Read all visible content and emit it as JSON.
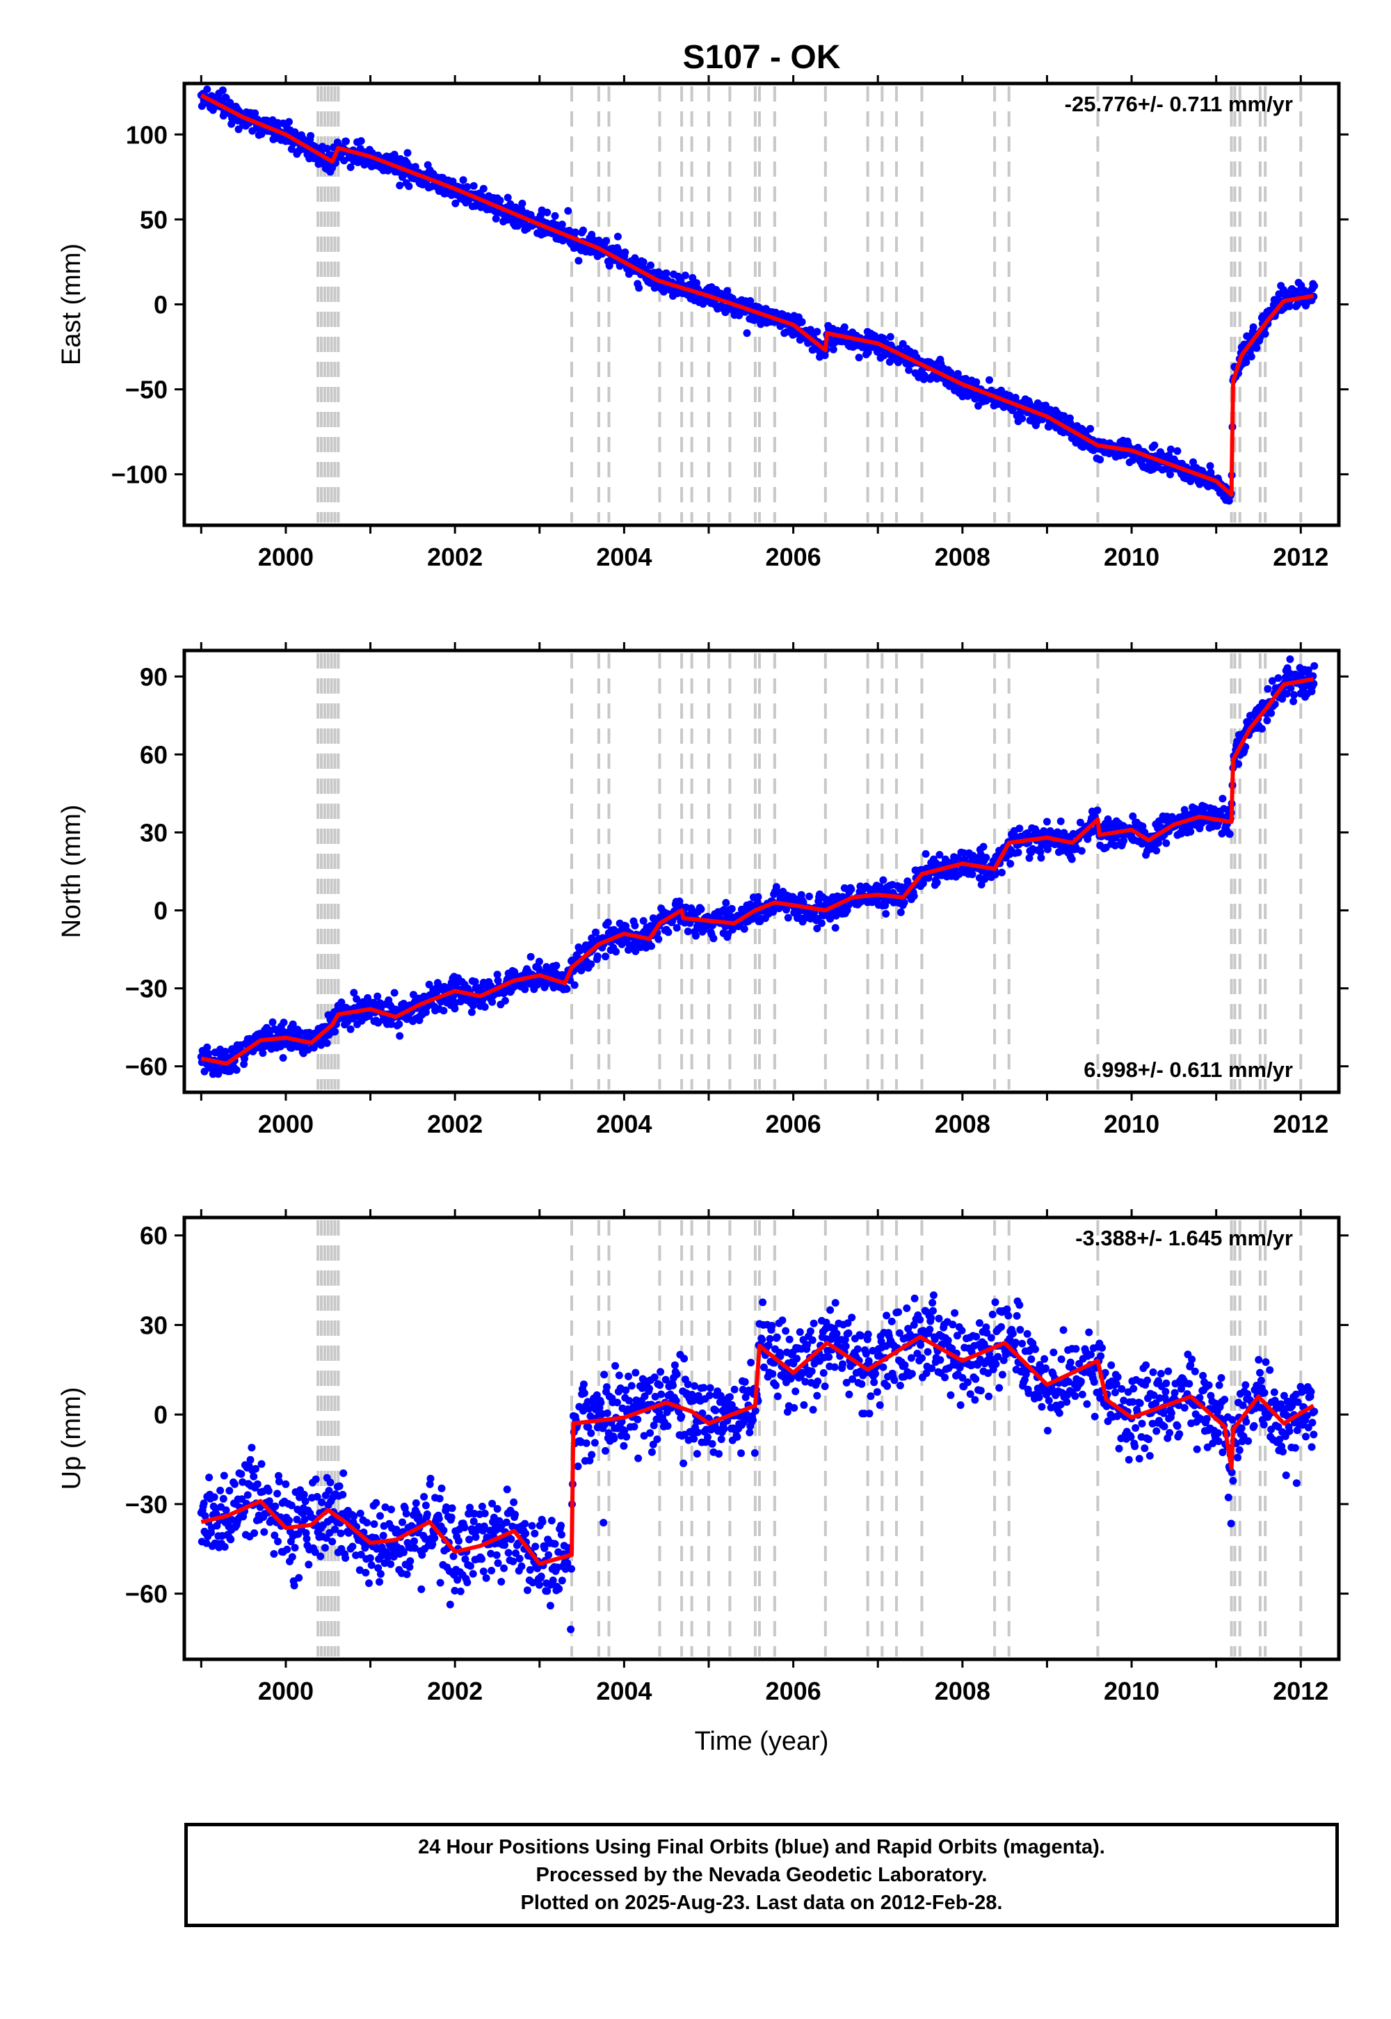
{
  "chart_data": {
    "type": "scatter",
    "title": "S107 - OK",
    "xlabel": "Time (year)",
    "x_range": [
      1998.8,
      2012.45
    ],
    "x_ticks": [
      "2000",
      "2002",
      "2004",
      "2006",
      "2008",
      "2010",
      "2012"
    ],
    "point_color": "#0000ff",
    "fit_color": "#ff0000",
    "event_line_color": "#c8c8c8",
    "event_lines": [
      2000.38,
      2000.42,
      2000.46,
      2000.5,
      2000.54,
      2000.58,
      2000.62,
      2003.38,
      2003.7,
      2003.82,
      2004.42,
      2004.68,
      2004.8,
      2005.0,
      2005.25,
      2005.55,
      2005.6,
      2005.78,
      2006.38,
      2006.88,
      2007.05,
      2007.22,
      2007.52,
      2008.38,
      2008.55,
      2009.6,
      2011.18,
      2011.22,
      2011.28,
      2011.52,
      2011.58,
      2012.0
    ],
    "panels": [
      {
        "component": "east",
        "ylabel": "East (mm)",
        "ylim": [
          -130,
          130
        ],
        "y_ticks": [
          "100",
          "50",
          "0",
          "−50",
          "−100"
        ],
        "rate_text": "-25.776+/- 0.711 mm/yr",
        "rate_position": "top-right",
        "trend": [
          [
            1999.0,
            123
          ],
          [
            1999.5,
            110
          ],
          [
            2000.0,
            100
          ],
          [
            2000.55,
            84
          ],
          [
            2000.62,
            92
          ],
          [
            2001.0,
            87
          ],
          [
            2002.0,
            68
          ],
          [
            2003.0,
            47
          ],
          [
            2003.7,
            33
          ],
          [
            2004.4,
            14
          ],
          [
            2005.0,
            5
          ],
          [
            2006.0,
            -12
          ],
          [
            2006.38,
            -27
          ],
          [
            2006.4,
            -17
          ],
          [
            2007.0,
            -23
          ],
          [
            2008.0,
            -47
          ],
          [
            2009.0,
            -66
          ],
          [
            2009.6,
            -83
          ],
          [
            2010.0,
            -86
          ],
          [
            2011.0,
            -104
          ],
          [
            2011.18,
            -112
          ],
          [
            2011.2,
            -45
          ],
          [
            2011.3,
            -30
          ],
          [
            2011.6,
            -10
          ],
          [
            2011.8,
            2
          ],
          [
            2012.15,
            5
          ]
        ],
        "scatter_sd": 3.5
      },
      {
        "component": "north",
        "ylabel": "North (mm)",
        "ylim": [
          -70,
          100
        ],
        "y_ticks": [
          "90",
          "60",
          "30",
          "0",
          "−30",
          "−60"
        ],
        "rate_text": "6.998+/- 0.611 mm/yr",
        "rate_position": "bottom-right",
        "trend": [
          [
            1999.0,
            -57
          ],
          [
            1999.3,
            -59
          ],
          [
            1999.7,
            -50
          ],
          [
            2000.0,
            -49
          ],
          [
            2000.3,
            -51
          ],
          [
            2000.55,
            -44
          ],
          [
            2000.62,
            -40
          ],
          [
            2001.0,
            -38
          ],
          [
            2001.3,
            -41
          ],
          [
            2001.6,
            -36
          ],
          [
            2002.0,
            -31
          ],
          [
            2002.3,
            -33
          ],
          [
            2002.7,
            -27
          ],
          [
            2003.0,
            -25
          ],
          [
            2003.3,
            -28
          ],
          [
            2003.38,
            -22
          ],
          [
            2003.7,
            -13
          ],
          [
            2004.0,
            -9
          ],
          [
            2004.3,
            -11
          ],
          [
            2004.42,
            -5
          ],
          [
            2004.68,
            0
          ],
          [
            2004.7,
            -3
          ],
          [
            2005.0,
            -4
          ],
          [
            2005.3,
            -5
          ],
          [
            2005.55,
            0
          ],
          [
            2005.78,
            3
          ],
          [
            2006.0,
            2
          ],
          [
            2006.38,
            0
          ],
          [
            2006.7,
            5
          ],
          [
            2007.0,
            6
          ],
          [
            2007.3,
            5
          ],
          [
            2007.52,
            14
          ],
          [
            2008.0,
            18
          ],
          [
            2008.38,
            16
          ],
          [
            2008.55,
            26
          ],
          [
            2009.0,
            28
          ],
          [
            2009.3,
            26
          ],
          [
            2009.6,
            35
          ],
          [
            2009.62,
            29
          ],
          [
            2010.0,
            31
          ],
          [
            2010.2,
            27
          ],
          [
            2010.5,
            33
          ],
          [
            2010.8,
            36
          ],
          [
            2011.18,
            34
          ],
          [
            2011.2,
            58
          ],
          [
            2011.4,
            70
          ],
          [
            2011.6,
            78
          ],
          [
            2011.8,
            87
          ],
          [
            2012.15,
            89
          ]
        ],
        "scatter_sd": 2.8
      },
      {
        "component": "up",
        "ylabel": "Up (mm)",
        "ylim": [
          -82,
          66
        ],
        "y_ticks": [
          "60",
          "30",
          "0",
          "−30",
          "−60"
        ],
        "rate_text": "-3.388+/- 1.645 mm/yr",
        "rate_position": "top-right",
        "trend": [
          [
            1999.0,
            -36
          ],
          [
            1999.3,
            -34
          ],
          [
            1999.7,
            -29
          ],
          [
            2000.0,
            -38
          ],
          [
            2000.3,
            -37
          ],
          [
            2000.5,
            -32
          ],
          [
            2000.7,
            -36
          ],
          [
            2001.0,
            -43
          ],
          [
            2001.3,
            -42
          ],
          [
            2001.7,
            -36
          ],
          [
            2002.0,
            -46
          ],
          [
            2002.3,
            -44
          ],
          [
            2002.7,
            -39
          ],
          [
            2003.0,
            -50
          ],
          [
            2003.38,
            -47
          ],
          [
            2003.4,
            -3
          ],
          [
            2003.7,
            -2
          ],
          [
            2004.0,
            -1
          ],
          [
            2004.5,
            4
          ],
          [
            2004.8,
            1
          ],
          [
            2005.0,
            -3
          ],
          [
            2005.55,
            3
          ],
          [
            2005.6,
            23
          ],
          [
            2006.0,
            14
          ],
          [
            2006.4,
            24
          ],
          [
            2006.88,
            15
          ],
          [
            2007.5,
            26
          ],
          [
            2008.0,
            18
          ],
          [
            2008.5,
            24
          ],
          [
            2009.0,
            10
          ],
          [
            2009.6,
            18
          ],
          [
            2009.7,
            5
          ],
          [
            2010.0,
            -1
          ],
          [
            2010.3,
            2
          ],
          [
            2010.7,
            6
          ],
          [
            2011.1,
            -4
          ],
          [
            2011.18,
            -18
          ],
          [
            2011.2,
            -5
          ],
          [
            2011.5,
            6
          ],
          [
            2011.8,
            -3
          ],
          [
            2012.15,
            3
          ]
        ],
        "scatter_sd": 7.0
      }
    ]
  },
  "footer": {
    "line1": "24 Hour Positions Using Final Orbits (blue) and Rapid Orbits (magenta).",
    "line2": "Processed by the Nevada Geodetic Laboratory.",
    "line3": "Plotted on 2025-Aug-23. Last data on 2012-Feb-28."
  }
}
